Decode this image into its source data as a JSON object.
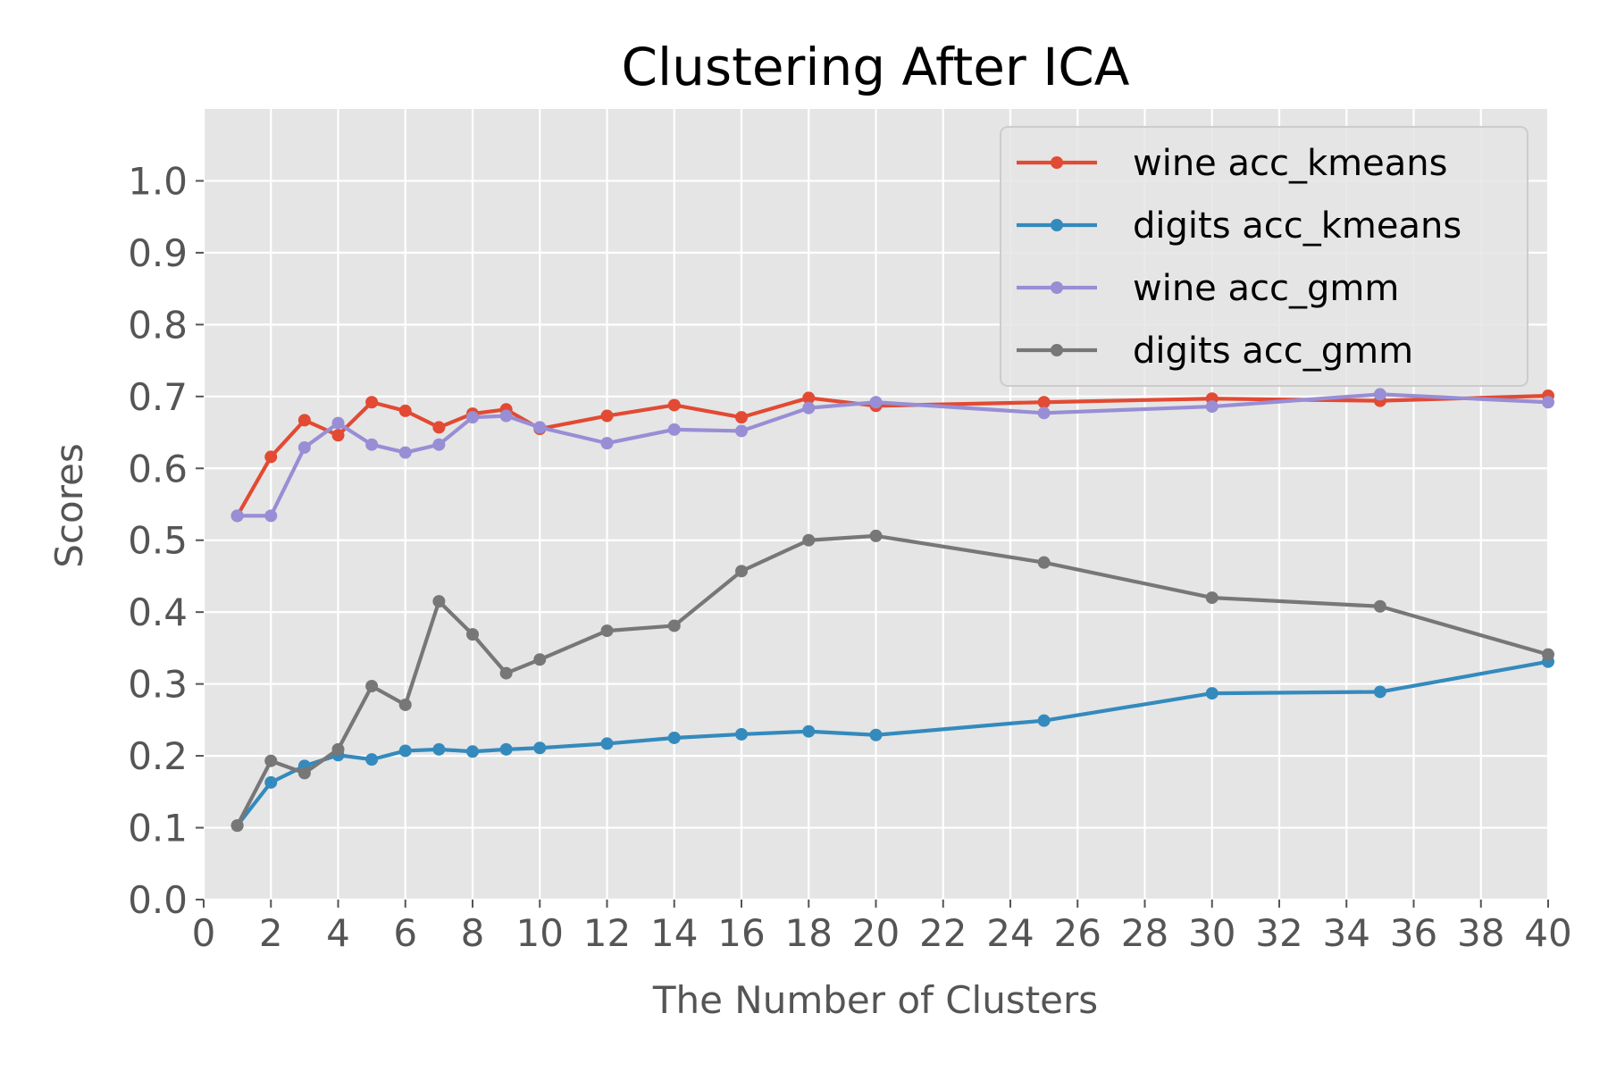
{
  "chart_data": {
    "type": "line",
    "title": "Clustering After ICA",
    "xlabel": "The Number of Clusters",
    "ylabel": "Scores",
    "xlim": [
      0,
      40
    ],
    "ylim": [
      0,
      1.1
    ],
    "xticks": [
      0,
      2,
      4,
      6,
      8,
      10,
      12,
      14,
      16,
      18,
      20,
      22,
      24,
      26,
      28,
      30,
      32,
      34,
      36,
      38,
      40
    ],
    "xtick_labels": [
      "0",
      "2",
      "4",
      "6",
      "8",
      "10",
      "12",
      "14",
      "16",
      "18",
      "20",
      "22",
      "24",
      "26",
      "28",
      "30",
      "32",
      "34",
      "36",
      "38",
      "40"
    ],
    "yticks": [
      0.0,
      0.1,
      0.2,
      0.3,
      0.4,
      0.5,
      0.6,
      0.7,
      0.8,
      0.9,
      1.0
    ],
    "ytick_labels": [
      "0.0",
      "0.1",
      "0.2",
      "0.3",
      "0.4",
      "0.5",
      "0.6",
      "0.7",
      "0.8",
      "0.9",
      "1.0"
    ],
    "grid": true,
    "legend_position": "top-right",
    "background_color": "#e5e5e5",
    "grid_color": "#ffffff",
    "x": [
      1,
      2,
      3,
      4,
      5,
      6,
      7,
      8,
      9,
      10,
      12,
      14,
      16,
      18,
      20,
      25,
      30,
      35,
      40
    ],
    "series": [
      {
        "name": "wine acc_kmeans",
        "color": "#e24a33",
        "values": [
          0.534,
          0.616,
          0.667,
          0.646,
          0.692,
          0.68,
          0.657,
          0.676,
          0.682,
          0.655,
          0.673,
          0.688,
          0.671,
          0.698,
          0.687,
          0.692,
          0.697,
          0.694,
          0.701
        ]
      },
      {
        "name": "digits acc_kmeans",
        "color": "#348abd",
        "values": [
          0.103,
          0.163,
          0.186,
          0.201,
          0.195,
          0.207,
          0.209,
          0.206,
          0.209,
          0.211,
          0.217,
          0.225,
          0.23,
          0.234,
          0.229,
          0.249,
          0.287,
          0.289,
          0.331
        ]
      },
      {
        "name": "wine acc_gmm",
        "color": "#988ed5",
        "values": [
          0.534,
          0.534,
          0.629,
          0.663,
          0.633,
          0.622,
          0.633,
          0.671,
          0.673,
          0.657,
          0.635,
          0.654,
          0.652,
          0.684,
          0.692,
          0.677,
          0.686,
          0.703,
          0.692
        ]
      },
      {
        "name": "digits acc_gmm",
        "color": "#777777",
        "values": [
          0.103,
          0.193,
          0.176,
          0.209,
          0.297,
          0.271,
          0.415,
          0.369,
          0.315,
          0.334,
          0.374,
          0.381,
          0.457,
          0.5,
          0.506,
          0.469,
          0.42,
          0.408,
          0.341
        ]
      }
    ]
  }
}
